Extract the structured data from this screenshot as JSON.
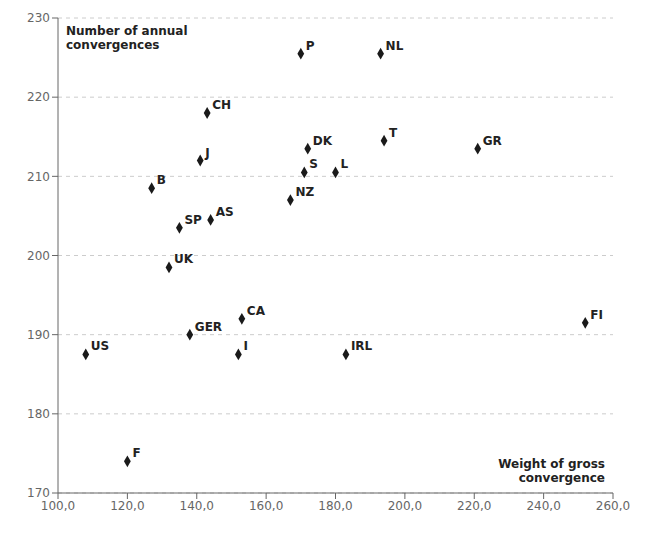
{
  "chart_data": {
    "type": "scatter",
    "points": [
      {
        "label": "US",
        "x": 108,
        "y": 187.5
      },
      {
        "label": "F",
        "x": 120,
        "y": 174.0
      },
      {
        "label": "B",
        "x": 127,
        "y": 208.5
      },
      {
        "label": "GER",
        "x": 138,
        "y": 190.0
      },
      {
        "label": "SP",
        "x": 135,
        "y": 203.5
      },
      {
        "label": "UK",
        "x": 132,
        "y": 198.5
      },
      {
        "label": "AS",
        "x": 144,
        "y": 204.5
      },
      {
        "label": "J",
        "x": 141,
        "y": 212.0
      },
      {
        "label": "CH",
        "x": 143,
        "y": 218.0
      },
      {
        "label": "I",
        "x": 152,
        "y": 187.5
      },
      {
        "label": "CA",
        "x": 153,
        "y": 192.0
      },
      {
        "label": "NZ",
        "x": 167,
        "y": 207.0
      },
      {
        "label": "S",
        "x": 171,
        "y": 210.5
      },
      {
        "label": "DK",
        "x": 172,
        "y": 213.5
      },
      {
        "label": "L",
        "x": 180,
        "y": 210.5
      },
      {
        "label": "P",
        "x": 170,
        "y": 225.5
      },
      {
        "label": "IRL",
        "x": 183,
        "y": 187.5
      },
      {
        "label": "T",
        "x": 194,
        "y": 214.5
      },
      {
        "label": "NL",
        "x": 193,
        "y": 225.5
      },
      {
        "label": "GR",
        "x": 221,
        "y": 213.5
      },
      {
        "label": "FI",
        "x": 252,
        "y": 191.5
      }
    ],
    "xlabel": "Weight of gross\nconvergence",
    "ylabel": "Number of annual\nconvergences",
    "xlim": [
      100,
      260
    ],
    "ylim": [
      170,
      230
    ],
    "xticks": [
      {
        "value": 100,
        "label": "100,0"
      },
      {
        "value": 120,
        "label": "120,0"
      },
      {
        "value": 140,
        "label": "140,0"
      },
      {
        "value": 160,
        "label": "160,0"
      },
      {
        "value": 180,
        "label": "180,0"
      },
      {
        "value": 200,
        "label": "200,0"
      },
      {
        "value": 220,
        "label": "220,0"
      },
      {
        "value": 240,
        "label": "240,0"
      },
      {
        "value": 260,
        "label": "260,0"
      }
    ],
    "yticks": [
      170,
      180,
      190,
      200,
      210,
      220,
      230
    ],
    "color": "#1a1a1a",
    "marker": "diamond",
    "grid": true
  }
}
